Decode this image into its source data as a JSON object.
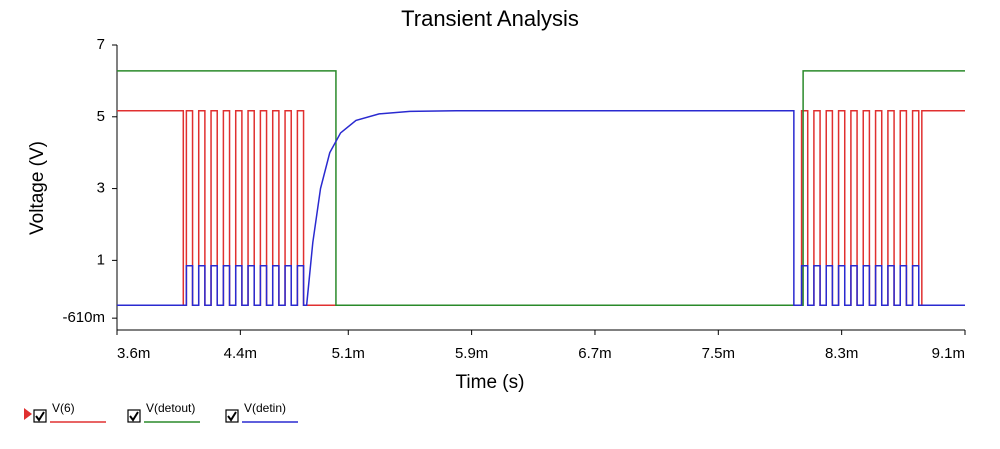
{
  "chart_data": {
    "type": "line",
    "title": "Transient Analysis",
    "x_label": "Time (s)",
    "y_label": "Voltage (V)",
    "xlim": [
      3.6,
      9.1
    ],
    "xticks": [
      {
        "value": 3.6,
        "label": "3.6m"
      },
      {
        "value": 4.4,
        "label": "4.4m"
      },
      {
        "value": 5.1,
        "label": "5.1m"
      },
      {
        "value": 5.9,
        "label": "5.9m"
      },
      {
        "value": 6.7,
        "label": "6.7m"
      },
      {
        "value": 7.5,
        "label": "7.5m"
      },
      {
        "value": 8.3,
        "label": "8.3m"
      },
      {
        "value": 9.1,
        "label": "9.1m"
      }
    ],
    "ylim": [
      -0.94,
      7
    ],
    "yticks": [
      {
        "value": -0.61,
        "label": "-610m"
      },
      1,
      3,
      5,
      7
    ],
    "series": [
      {
        "name": "V(6)",
        "color": "#e03030",
        "x": [
          3.6,
          4.03,
          4.03,
          4.05,
          4.05,
          4.09,
          4.09,
          4.13,
          4.13,
          4.17,
          4.17,
          4.21,
          4.21,
          4.25,
          4.25,
          4.29,
          4.29,
          4.33,
          4.33,
          4.37,
          4.37,
          4.41,
          4.41,
          4.45,
          4.45,
          4.49,
          4.49,
          4.53,
          4.53,
          4.57,
          4.57,
          4.61,
          4.61,
          4.65,
          4.65,
          4.69,
          4.69,
          4.73,
          4.73,
          4.77,
          4.77,
          4.81,
          4.81,
          8.04,
          8.04,
          8.08,
          8.08,
          8.12,
          8.12,
          8.16,
          8.16,
          8.2,
          8.2,
          8.24,
          8.24,
          8.28,
          8.28,
          8.32,
          8.32,
          8.36,
          8.36,
          8.4,
          8.4,
          8.44,
          8.44,
          8.48,
          8.48,
          8.52,
          8.52,
          8.56,
          8.56,
          8.6,
          8.6,
          8.64,
          8.64,
          8.68,
          8.68,
          8.72,
          8.72,
          8.76,
          8.76,
          8.8,
          8.8,
          8.82,
          8.82,
          9.1
        ],
        "values": [
          5.17,
          5.17,
          -0.25,
          -0.25,
          5.17,
          5.17,
          -0.25,
          -0.25,
          5.17,
          5.17,
          -0.25,
          -0.25,
          5.17,
          5.17,
          -0.25,
          -0.25,
          5.17,
          5.17,
          -0.25,
          -0.25,
          5.17,
          5.17,
          -0.25,
          -0.25,
          5.17,
          5.17,
          -0.25,
          -0.25,
          5.17,
          5.17,
          -0.25,
          -0.25,
          5.17,
          5.17,
          -0.25,
          -0.25,
          5.17,
          5.17,
          -0.25,
          -0.25,
          5.17,
          5.17,
          -0.25,
          -0.25,
          5.17,
          5.17,
          -0.25,
          -0.25,
          5.17,
          5.17,
          -0.25,
          -0.25,
          5.17,
          5.17,
          -0.25,
          -0.25,
          5.17,
          5.17,
          -0.25,
          -0.25,
          5.17,
          5.17,
          -0.25,
          -0.25,
          5.17,
          5.17,
          -0.25,
          -0.25,
          5.17,
          5.17,
          -0.25,
          -0.25,
          5.17,
          5.17,
          -0.25,
          -0.25,
          5.17,
          5.17,
          -0.25,
          -0.25,
          5.17,
          5.17,
          -0.25,
          -0.25,
          5.17,
          5.17
        ]
      },
      {
        "name": "V(detout)",
        "color": "#2a8a2a",
        "x": [
          3.6,
          5.02,
          5.02,
          8.05,
          8.05,
          9.1
        ],
        "values": [
          6.28,
          6.28,
          -0.25,
          -0.25,
          6.28,
          6.28
        ]
      },
      {
        "name": "V(detin)",
        "color": "#2a2ad0",
        "x": [
          3.6,
          4.05,
          4.05,
          4.09,
          4.09,
          4.13,
          4.13,
          4.17,
          4.17,
          4.21,
          4.21,
          4.25,
          4.25,
          4.29,
          4.29,
          4.33,
          4.33,
          4.37,
          4.37,
          4.41,
          4.41,
          4.45,
          4.45,
          4.49,
          4.49,
          4.53,
          4.53,
          4.57,
          4.57,
          4.61,
          4.61,
          4.65,
          4.65,
          4.69,
          4.69,
          4.73,
          4.73,
          4.77,
          4.77,
          4.81,
          4.81,
          4.83,
          4.87,
          4.92,
          4.98,
          5.05,
          5.15,
          5.3,
          5.5,
          5.8,
          7.99,
          7.99,
          8.04,
          8.04,
          8.08,
          8.08,
          8.12,
          8.12,
          8.16,
          8.16,
          8.2,
          8.2,
          8.24,
          8.24,
          8.28,
          8.28,
          8.32,
          8.32,
          8.36,
          8.36,
          8.4,
          8.4,
          8.44,
          8.44,
          8.48,
          8.48,
          8.52,
          8.52,
          8.56,
          8.56,
          8.6,
          8.6,
          8.64,
          8.64,
          8.68,
          8.68,
          8.72,
          8.72,
          8.76,
          8.76,
          8.8,
          8.8,
          9.1
        ],
        "values": [
          -0.25,
          -0.25,
          0.85,
          0.85,
          -0.25,
          -0.25,
          0.85,
          0.85,
          -0.25,
          -0.25,
          0.85,
          0.85,
          -0.25,
          -0.25,
          0.85,
          0.85,
          -0.25,
          -0.25,
          0.85,
          0.85,
          -0.25,
          -0.25,
          0.85,
          0.85,
          -0.25,
          -0.25,
          0.85,
          0.85,
          -0.25,
          -0.25,
          0.85,
          0.85,
          -0.25,
          -0.25,
          0.85,
          0.85,
          -0.25,
          -0.25,
          0.85,
          0.85,
          -0.25,
          -0.25,
          1.5,
          3.0,
          4.0,
          4.55,
          4.9,
          5.08,
          5.15,
          5.17,
          5.17,
          -0.25,
          -0.25,
          0.85,
          0.85,
          -0.25,
          -0.25,
          0.85,
          0.85,
          -0.25,
          -0.25,
          0.85,
          0.85,
          -0.25,
          -0.25,
          0.85,
          0.85,
          -0.25,
          -0.25,
          0.85,
          0.85,
          -0.25,
          -0.25,
          0.85,
          0.85,
          -0.25,
          -0.25,
          0.85,
          0.85,
          -0.25,
          -0.25,
          0.85,
          0.85,
          -0.25,
          -0.25,
          0.85,
          0.85,
          -0.25,
          -0.25,
          0.85,
          0.85,
          -0.25,
          -0.25
        ]
      }
    ]
  }
}
